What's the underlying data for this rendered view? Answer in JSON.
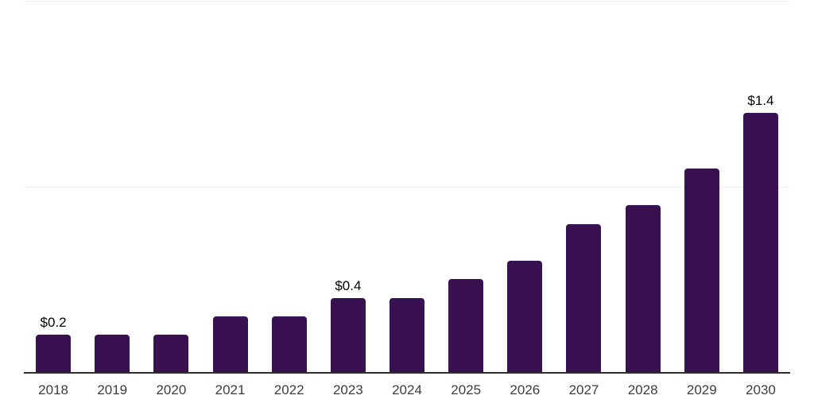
{
  "chart_data": {
    "type": "bar",
    "title": "",
    "xlabel": "",
    "ylabel": "",
    "categories": [
      "2018",
      "2019",
      "2020",
      "2021",
      "2022",
      "2023",
      "2024",
      "2025",
      "2026",
      "2027",
      "2028",
      "2029",
      "2030"
    ],
    "values": [
      0.2,
      0.2,
      0.2,
      0.3,
      0.3,
      0.4,
      0.4,
      0.5,
      0.6,
      0.8,
      0.9,
      1.1,
      1.4
    ],
    "data_labels": [
      "$0.2",
      "",
      "",
      "",
      "",
      "$0.4",
      "",
      "",
      "",
      "",
      "",
      "",
      "$1.4"
    ],
    "ylim": [
      0,
      2.0
    ],
    "grid": "horizontal gridlines at 0, 1.0 and 2.0; no y-axis tick labels",
    "legend": "none",
    "colors": {
      "bar": "#3A1150",
      "axis_line": "#2E2E2E",
      "gridline": "#EFEFEF",
      "tick_label": "#3D3D3D",
      "data_label": "#000000",
      "background": "#FFFFFF"
    }
  }
}
